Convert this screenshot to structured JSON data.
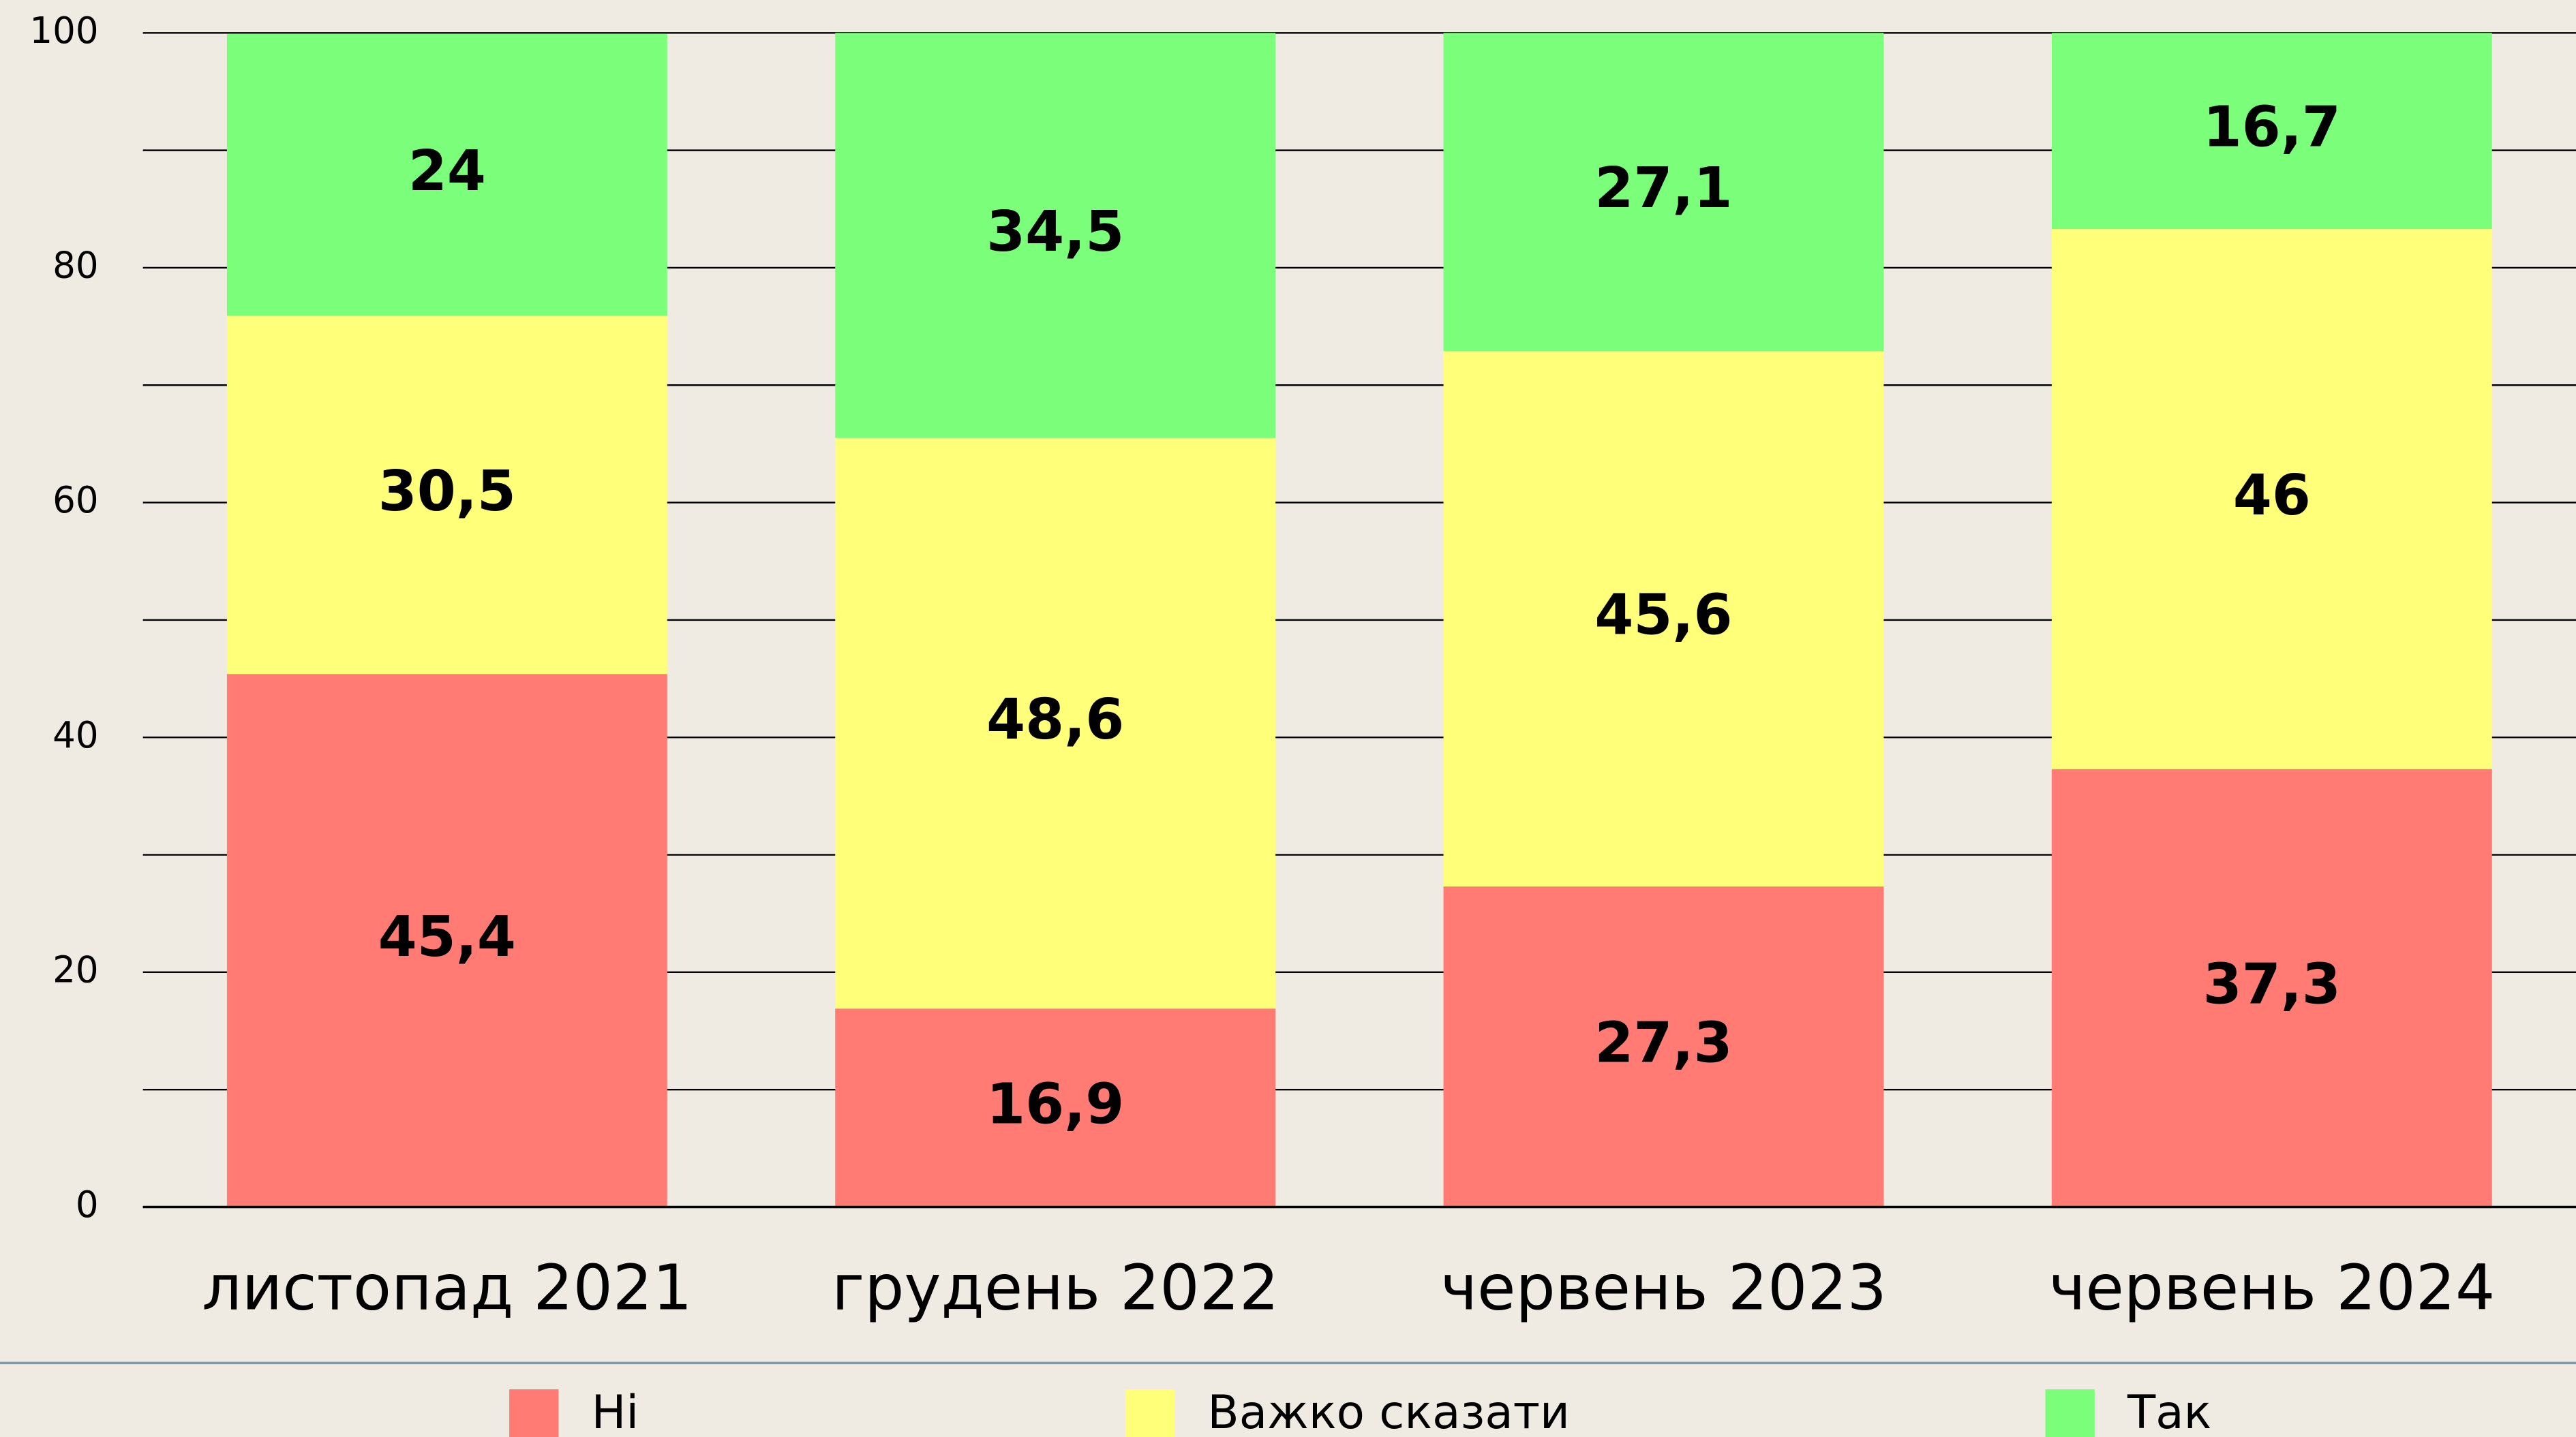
{
  "chart_data": {
    "type": "stacked_bar",
    "categories": [
      "листопад 2021",
      "грудень 2022",
      "червень 2023",
      "червень 2024"
    ],
    "series": [
      {
        "name": "Ні",
        "color": "#ff7b74",
        "values": [
          45.4,
          16.9,
          27.3,
          37.3
        ],
        "value_labels": [
          "45,4",
          "16,9",
          "27,3",
          "37,3"
        ]
      },
      {
        "name": "Важко сказати",
        "color": "#ffff7a",
        "values": [
          30.5,
          48.6,
          45.6,
          46
        ],
        "value_labels": [
          "30,5",
          "48,6",
          "45,6",
          "46"
        ]
      },
      {
        "name": "Так",
        "color": "#7bff7b",
        "values": [
          24,
          34.5,
          27.1,
          16.7
        ],
        "value_labels": [
          "24",
          "34,5",
          "27,1",
          "16,7"
        ]
      }
    ],
    "ylim": [
      0,
      100
    ],
    "yticks": [
      0,
      20,
      40,
      60,
      80,
      100
    ],
    "minor_yticks": [
      10,
      30,
      50,
      70,
      90
    ],
    "grid": true,
    "legend": "bottom"
  }
}
